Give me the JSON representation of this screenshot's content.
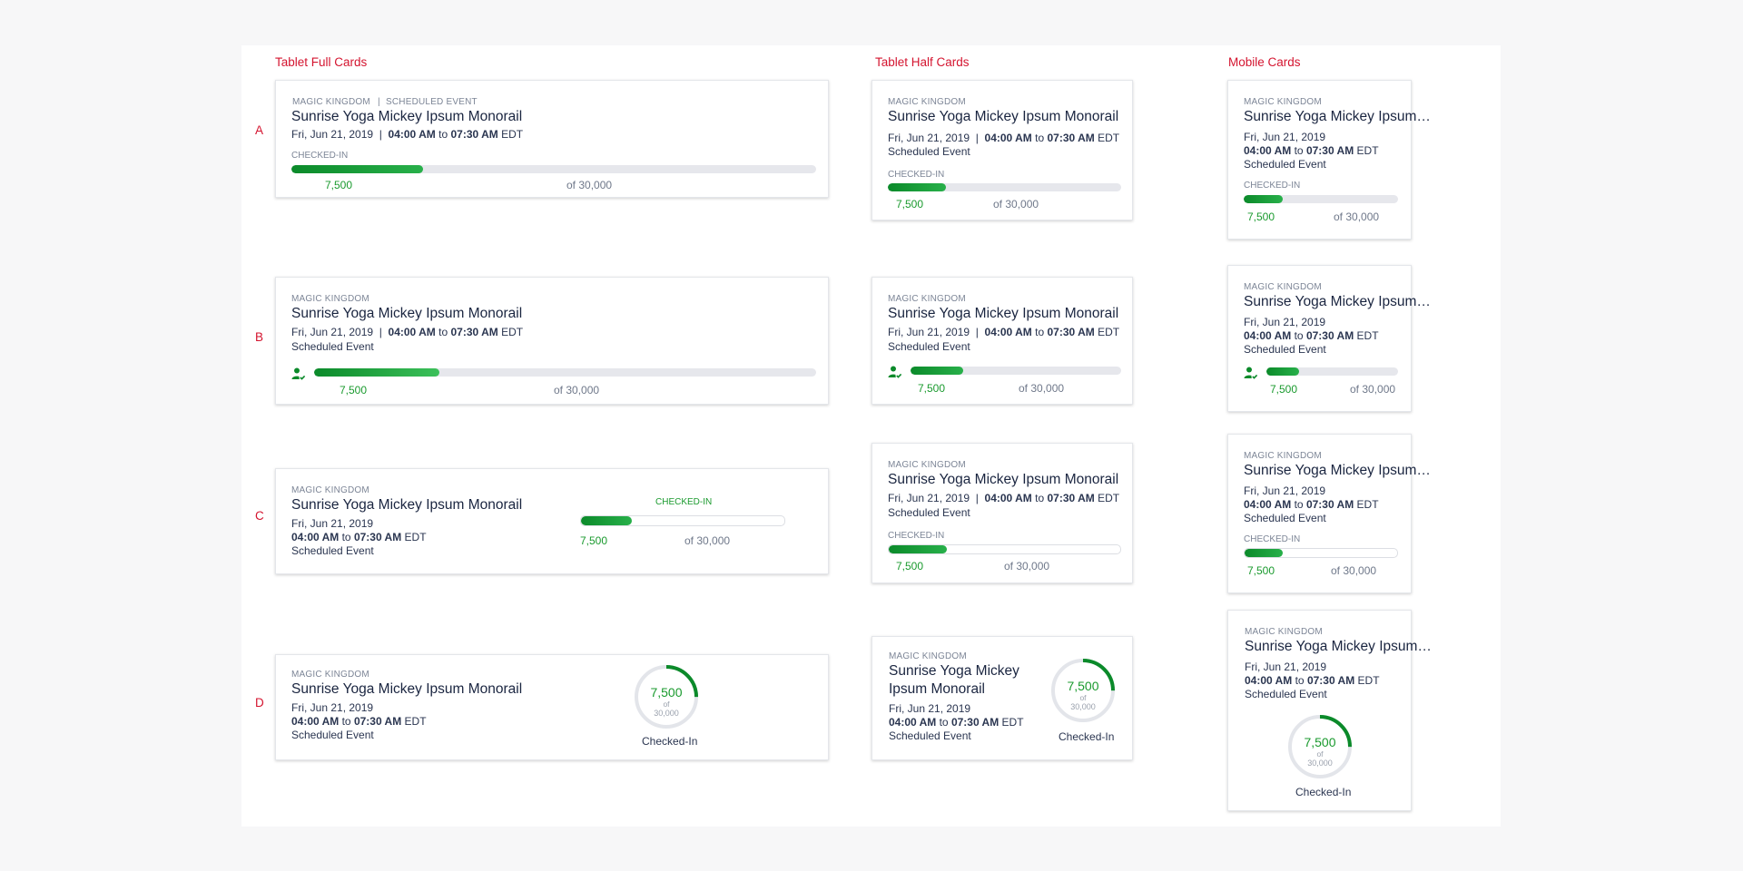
{
  "headings": {
    "tablet_full": "Tablet Full Cards",
    "tablet_half": "Tablet Half Cards",
    "mobile": "Mobile Cards"
  },
  "rows": [
    "A",
    "B",
    "C",
    "D"
  ],
  "event": {
    "park": "MAGIC KINGDOM",
    "type_inline": "SCHEDULED EVENT",
    "title": "Sunrise Yoga Mickey Ipsum Monorail",
    "title_truncated": "Sunrise Yoga Mickey Ipsum…",
    "title_line1": "Sunrise Yoga Mickey",
    "title_line2": "Ipsum Monorail",
    "date": "Fri, Jun 21, 2019",
    "sep": "|",
    "start": "04:00 AM",
    "to": "to",
    "end": "07:30 AM",
    "tz": "EDT",
    "type": "Scheduled Event"
  },
  "progress": {
    "label": "CHECKED-IN",
    "count": "7,500",
    "total": "of 30,000",
    "of": "of",
    "total_number": "30,000",
    "ring_caption": "Checked-In",
    "fraction": 0.25
  },
  "colors": {
    "accent_red": "#d4142f",
    "progress_green": "#0b8a2a",
    "track_gray": "#e6e7ec"
  },
  "icons": {
    "checked_in": "person-check-icon"
  }
}
